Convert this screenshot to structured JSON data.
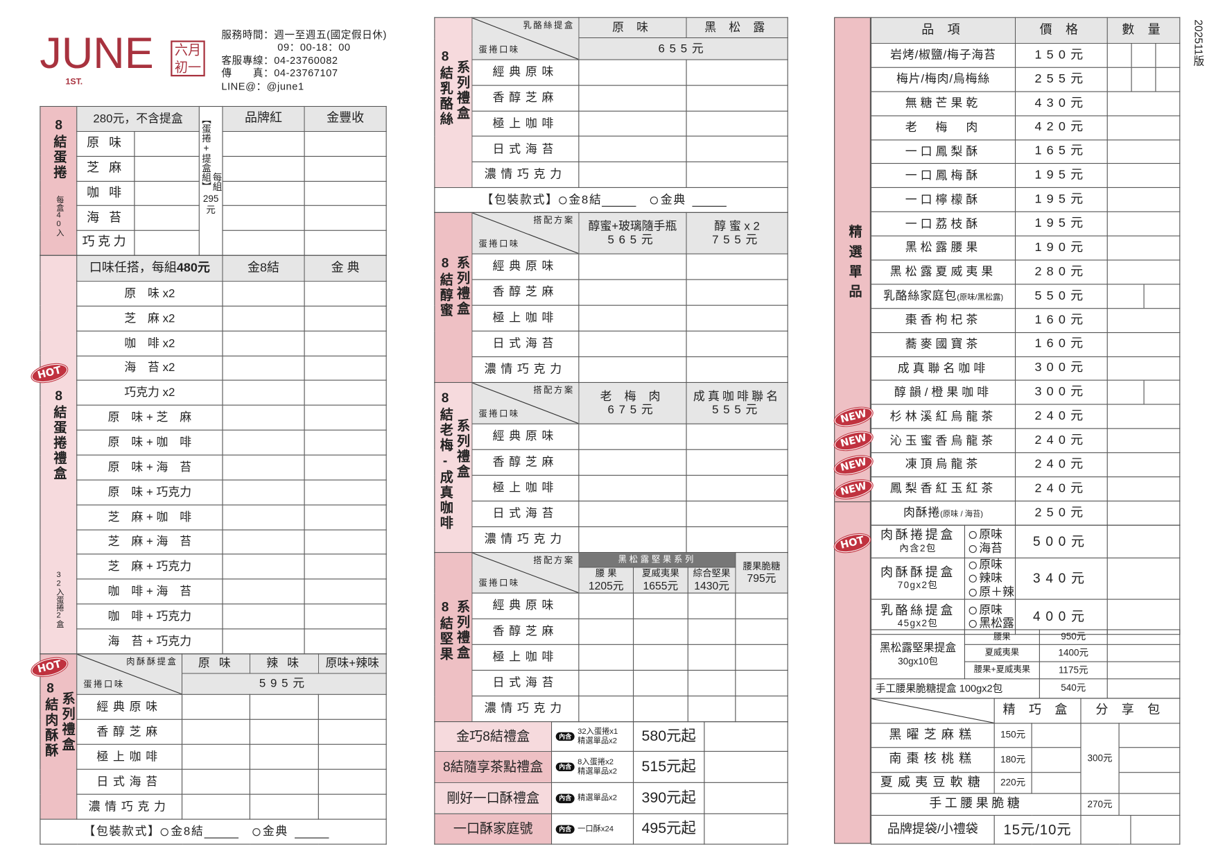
{
  "header": {
    "brand": "JUNE",
    "brand_sub": "1ST.",
    "seal": "六月初一",
    "hours_label": "服務時間：週一至週五(國定假日休)",
    "hours": "09：00-18：00",
    "hotline": "客服專線：04-23760082",
    "fax": "傳　　真：04-23767107",
    "line": "LINE@：@june1"
  },
  "version": "202511版",
  "colors": {
    "pink": "#eec0c4",
    "pink_light": "#f6dadd",
    "badge": "#c0323f",
    "header_gray": "#e6e6e6",
    "brand": "#a8323e"
  },
  "flavors": [
    "經典原味",
    "香醇芝麻",
    "極上咖啡",
    "日式海苔",
    "濃情巧克力"
  ],
  "diag_bottom": "蛋捲口味",
  "diag_plan": "搭配方案",
  "packaging": {
    "label": "【包裝款式】",
    "opt1": "金8結",
    "opt2": "金典"
  },
  "egg_roll": {
    "title": "8結蛋捲",
    "note": "每盒40入",
    "price_header": "280元，不含提盒",
    "set_label": "【蛋捲+提盒組】",
    "set_prefix": "每組",
    "set_price": "295",
    "set_unit": "元",
    "box_cols": [
      "品牌紅",
      "金豐收"
    ],
    "rows": [
      "原 味",
      "芝 麻",
      "咖 啡",
      "海 苔",
      "巧克力"
    ]
  },
  "gift_box": {
    "badge": "HOT",
    "title": "8結蛋捲禮盒",
    "note": "32入蛋捲2盒",
    "header": "口味任搭，每組",
    "header_price": "480元",
    "cols": [
      "金8結",
      "金 典"
    ],
    "rows": [
      "原　味 x2",
      "芝　麻 x2",
      "咖　啡 x2",
      "海　苔 x2",
      "巧克力 x2",
      "原　味 + 芝　麻",
      "原　味 + 咖　啡",
      "原　味 + 海　苔",
      "原　味 + 巧克力",
      "芝　麻 + 咖　啡",
      "芝　麻 + 海　苔",
      "芝　麻 + 巧克力",
      "咖　啡 + 海　苔",
      "咖　啡 + 巧克力",
      "海　苔 + 巧克力"
    ]
  },
  "pork_floss_box": {
    "badge": "HOT",
    "title": "8結肉酥酥",
    "title2": "系列禮盒",
    "diag_top": "肉酥酥提盒",
    "cols": [
      "原 味",
      "辣 味",
      "原味+辣味"
    ],
    "price": "595元"
  },
  "cheese_box": {
    "title": "8結乳酪絲",
    "title2": "系列禮盒",
    "diag_top": "乳酪絲提盒",
    "cols": [
      "原 味",
      "黑 松 露"
    ],
    "price": "655元"
  },
  "honey_box": {
    "title": "8結醇蜜",
    "title2": "系列禮盒",
    "cols": [
      {
        "name": "醇蜜+玻璃隨手瓶",
        "price": "565元"
      },
      {
        "name": "醇 蜜 x 2",
        "price": "755元"
      }
    ]
  },
  "plum_box": {
    "title": "8結老梅-成真咖啡",
    "title2": "系列禮盒",
    "cols": [
      {
        "name": "老 梅 肉",
        "price": "675元"
      },
      {
        "name": "成真咖啡聯名",
        "price": "555元"
      }
    ]
  },
  "nut_box": {
    "title": "8結堅果",
    "title2": "系列禮盒",
    "series": "黑松露堅果系列",
    "cols": [
      {
        "name": "腰 果",
        "price": "1205元"
      },
      {
        "name": "夏威夷果",
        "price": "1655元"
      },
      {
        "name": "綜合堅果",
        "price": "1430元"
      },
      {
        "name": "腰果脆糖",
        "price": "795元"
      }
    ]
  },
  "gift_sets": [
    {
      "name": "金巧8結禮盒",
      "tag": "內含",
      "contents": [
        "32入蛋捲x1",
        "精選單品x2"
      ],
      "price": "580元起"
    },
    {
      "name": "8結隨享茶點禮盒",
      "tag": "內含",
      "contents": [
        "8入蛋捲x2",
        "精選單品x2"
      ],
      "price": "515元起"
    },
    {
      "name": "剛好一口酥禮盒",
      "tag": "內含",
      "contents": [
        "精選單品x2"
      ],
      "price": "390元起"
    },
    {
      "name": "一口酥家庭號",
      "tag": "內含",
      "contents": [
        "一口酥x24"
      ],
      "price": "495元起"
    }
  ],
  "singles": {
    "title": "精選單品",
    "headers": [
      "品 項",
      "價 格",
      "數 量"
    ],
    "items": [
      {
        "name": "岩烤/椒鹽/梅子海苔",
        "price": "150元"
      },
      {
        "name": "梅片/梅肉/烏梅絲",
        "price": "255元"
      },
      {
        "name": "無糖芒果乾",
        "price": "430元"
      },
      {
        "name": "老　梅　肉",
        "price": "420元"
      },
      {
        "name": "一口鳳梨酥",
        "price": "165元"
      },
      {
        "name": "一口鳳梅酥",
        "price": "195元"
      },
      {
        "name": "一口檸檬酥",
        "price": "195元"
      },
      {
        "name": "一口荔枝酥",
        "price": "195元"
      },
      {
        "name": "黑松露腰果",
        "price": "190元"
      },
      {
        "name": "黑松露夏威夷果",
        "price": "280元"
      },
      {
        "name": "乳酪絲家庭包",
        "note": "(原味/黑松露)",
        "price": "550元"
      },
      {
        "name": "棗香枸杞茶",
        "price": "160元"
      },
      {
        "name": "蕎麥國寶茶",
        "price": "160元"
      },
      {
        "name": "成真聯名咖啡",
        "price": "300元"
      },
      {
        "name": "醇韻/橙果咖啡",
        "price": "300元"
      },
      {
        "name": "杉林溪紅烏龍茶",
        "price": "240元",
        "badge": "NEW"
      },
      {
        "name": "沁玉蜜香烏龍茶",
        "price": "240元",
        "badge": "NEW"
      },
      {
        "name": "凍頂烏龍茶",
        "price": "240元",
        "badge": "NEW"
      },
      {
        "name": "鳳梨香紅玉紅茶",
        "price": "240元",
        "badge": "NEW"
      },
      {
        "name": "肉酥捲",
        "note": "(原味 / 海苔)",
        "price": "250元"
      }
    ]
  },
  "boxes": [
    {
      "name": "肉酥捲提盒",
      "sub": "內含2包",
      "options": [
        "原味",
        "海苔"
      ],
      "price": "500元",
      "badge": "HOT"
    },
    {
      "name": "肉酥酥提盒",
      "sub": "70gx2包",
      "options": [
        "原味",
        "辣味",
        "原＋辣"
      ],
      "price": "340元"
    },
    {
      "name": "乳酪絲提盒",
      "sub": "45gx2包",
      "options": [
        "原味",
        "黑松露"
      ],
      "price": "400元"
    }
  ],
  "nut_gift": {
    "name": "黑松露堅果提盒",
    "sub": "30gx10包",
    "options": [
      {
        "name": "腰果",
        "price": "950元"
      },
      {
        "name": "夏威夷果",
        "price": "1400元"
      },
      {
        "name": "腰果+夏威夷果",
        "price": "1175元"
      }
    ]
  },
  "brittle_box": {
    "name": "手工腰果脆糖提盒 100gx2包",
    "price": "540元"
  },
  "sweets": {
    "cols": [
      "精 巧 盒",
      "分 享 包"
    ],
    "items": [
      {
        "name": "黑曜芝麻糕",
        "price": "150元"
      },
      {
        "name": "南棗核桃糕",
        "price": "180元"
      },
      {
        "name": "夏威夷豆軟糖",
        "price": "220元"
      }
    ],
    "share_price": "300元",
    "brittle": {
      "name": "手工腰果脆糖",
      "price": "270元"
    },
    "bag": {
      "name": "品牌提袋/小禮袋",
      "price": "15元/10元"
    }
  }
}
